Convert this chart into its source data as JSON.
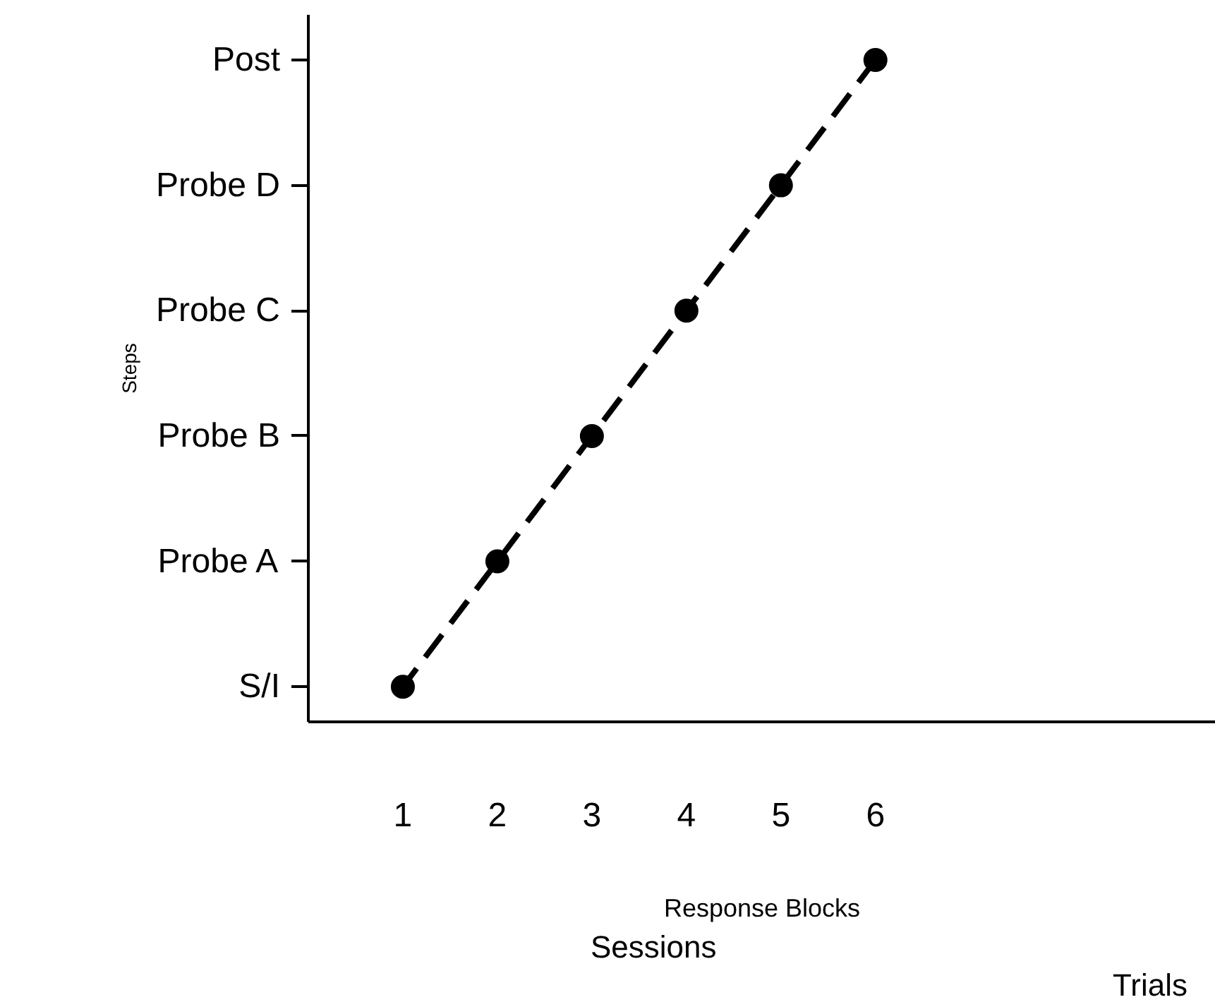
{
  "chart_data": {
    "type": "line",
    "orientation": "horizontal",
    "xlabel": "Response Blocks",
    "ylabel": "Steps",
    "annotations": [
      "Sessions",
      "Trials"
    ],
    "categories": [
      "Post",
      "Probe D",
      "Probe C",
      "Probe B",
      "Probe A",
      "S/I"
    ],
    "series": [
      {
        "color": "#000000",
        "values": [
          6,
          5,
          4,
          3,
          2,
          1
        ]
      }
    ],
    "xlim": [
      0,
      9.6
    ],
    "xticks": [
      1,
      2,
      3,
      4,
      5,
      6
    ],
    "grid": false,
    "marker": "circle",
    "line_style": "dashed"
  }
}
